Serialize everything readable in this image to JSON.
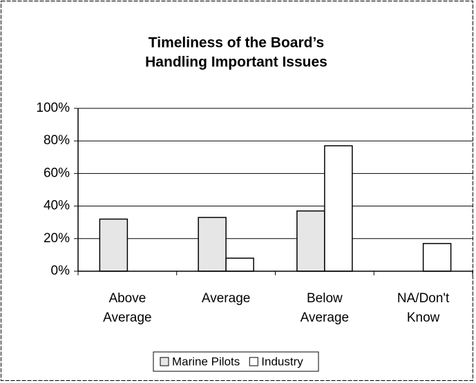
{
  "chart_data": {
    "type": "bar",
    "title": [
      "Timeliness of the Board’s",
      "Handling Important Issues"
    ],
    "categories": [
      "Above Average",
      "Average",
      "Below Average",
      "NA/Don't Know"
    ],
    "series": [
      {
        "name": "Marine Pilots",
        "color": "#e6e6e6",
        "values": [
          32,
          33,
          37,
          0
        ]
      },
      {
        "name": "Industry",
        "color": "#ffffff",
        "values": [
          0,
          8,
          77,
          17
        ]
      }
    ],
    "ylim": [
      0,
      100
    ],
    "yticks": [
      {
        "value": 0,
        "label": "0%"
      },
      {
        "value": 20,
        "label": "20%"
      },
      {
        "value": 40,
        "label": "40%"
      },
      {
        "value": 60,
        "label": "60%"
      },
      {
        "value": 80,
        "label": "80%"
      },
      {
        "value": 100,
        "label": "100%"
      }
    ],
    "grid": true,
    "legend": "bottom"
  }
}
